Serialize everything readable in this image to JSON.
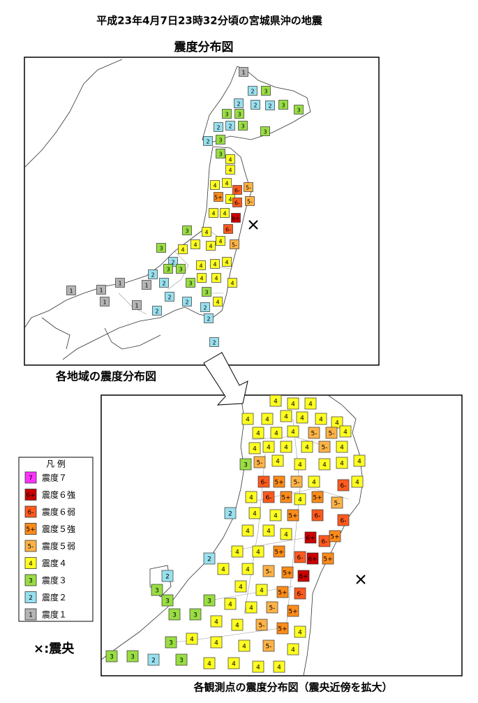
{
  "header": {
    "title": "平成23年4月7日23時32分頃の宮城県沖の地震"
  },
  "map_overview": {
    "title": "震度分布図",
    "stations": [
      "1",
      "2",
      "3",
      "2",
      "2",
      "2",
      "3",
      "3",
      "3",
      "3",
      "2",
      "2",
      "3",
      "3",
      "2",
      "3",
      "3",
      "4",
      "4",
      "4",
      "4",
      "6-",
      "5-",
      "5+",
      "4",
      "6-",
      "5-",
      "4",
      "4",
      "6+",
      "6-",
      "4",
      "3",
      "4",
      "5-",
      "4",
      "4",
      "4",
      "3",
      "2",
      "4",
      "4",
      "4",
      "3",
      "3",
      "4",
      "4",
      "4",
      "2",
      "3",
      "3",
      "2",
      "1",
      "1",
      "1",
      "1",
      "1",
      "1",
      "2",
      "2",
      "2",
      "4",
      "2",
      "2",
      "2"
    ]
  },
  "regional_caption": "各地域の震度分布図",
  "map_detail": {
    "caption": "各観測点の震度分布図（震央近傍を拡大）",
    "stations": [
      "4",
      "4",
      "4",
      "4",
      "4",
      "4",
      "4",
      "4",
      "4",
      "4",
      "4",
      "4",
      "5-",
      "5-",
      "4",
      "4",
      "4",
      "4",
      "4",
      "5-",
      "4",
      "4",
      "3",
      "5-",
      "4",
      "4",
      "4",
      "4",
      "6-",
      "5+",
      "5-",
      "4",
      "6-",
      "4",
      "4",
      "6-",
      "5+",
      "4",
      "5+",
      "5-",
      "2",
      "4",
      "4",
      "5+",
      "6-",
      "6-",
      "4",
      "4",
      "4",
      "6+",
      "6-",
      "5+",
      "2",
      "4",
      "4",
      "5+",
      "6-",
      "6+",
      "5+",
      "4",
      "4",
      "5-",
      "5+",
      "6+",
      "2",
      "4",
      "4",
      "5+",
      "6-",
      "3",
      "3",
      "3",
      "4",
      "4",
      "5-",
      "5+",
      "3",
      "3",
      "4",
      "4",
      "5-",
      "5+",
      "4",
      "3",
      "4",
      "4",
      "4",
      "5-",
      "4",
      "3",
      "3",
      "2",
      "3",
      "4",
      "4",
      "4",
      "4"
    ]
  },
  "legend": {
    "title": "凡 例",
    "items": [
      {
        "symbol": "7",
        "label": "震度７",
        "color": "#ff33ff"
      },
      {
        "symbol": "6+",
        "label": "震度６強",
        "color": "#cc0000"
      },
      {
        "symbol": "6-",
        "label": "震度６弱",
        "color": "#ff5a1e"
      },
      {
        "symbol": "5+",
        "label": "震度５強",
        "color": "#ff8c1a"
      },
      {
        "symbol": "5-",
        "label": "震度５弱",
        "color": "#ffb347"
      },
      {
        "symbol": "4",
        "label": "震度４",
        "color": "#ffff22"
      },
      {
        "symbol": "3",
        "label": "震度３",
        "color": "#99dd44"
      },
      {
        "symbol": "2",
        "label": "震度２",
        "color": "#99e0ee"
      },
      {
        "symbol": "1",
        "label": "震度１",
        "color": "#b4b4b4"
      }
    ]
  },
  "epicenter_label": "×:震央"
}
